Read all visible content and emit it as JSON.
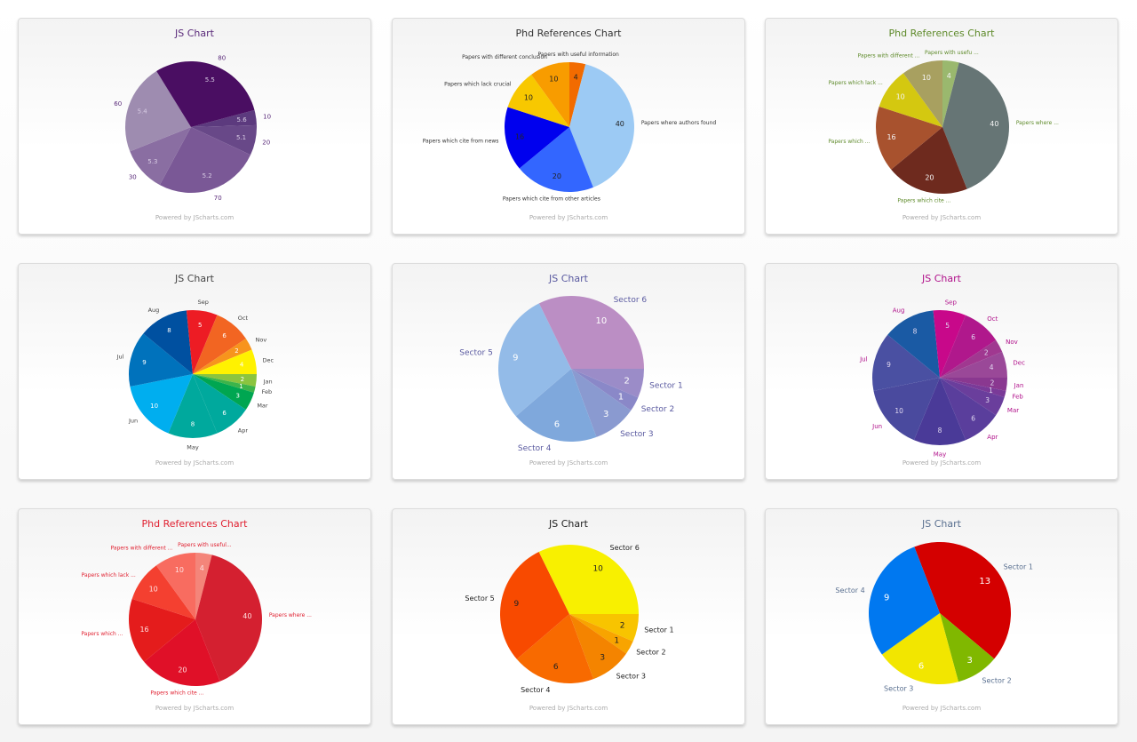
{
  "footer_text": "Powered by JScharts.com",
  "chart_data": [
    {
      "type": "pie",
      "title": "JS Chart",
      "labels": [
        "10",
        "20",
        "70",
        "30",
        "60",
        "80"
      ],
      "values": [
        10,
        20,
        70,
        30,
        60,
        80
      ],
      "inner_labels": [
        "5.6",
        "5.1",
        "5.2",
        "5.3",
        "5.4",
        "5.5"
      ],
      "colors": [
        "#5c3a7e",
        "#684888",
        "#7a5896",
        "#8a6ea2",
        "#9e8cb0",
        "#4a0e62"
      ],
      "text_color": "#5a2a7a",
      "inner_color": "#d8cce4"
    },
    {
      "type": "pie",
      "title": "Phd References Chart",
      "labels": [
        "Papers with useful information",
        "Papers where authors found",
        "Papers which cite from other articles",
        "Papers which cite from news",
        "Papers which lack crucial",
        "Papers with different conclusion"
      ],
      "values": [
        4,
        40,
        20,
        16,
        10,
        10
      ],
      "inner_labels": [
        "4",
        "40",
        "20",
        "16",
        "10",
        "10"
      ],
      "colors": [
        "#f26b00",
        "#9ccaf4",
        "#3366ff",
        "#0000ee",
        "#f8c800",
        "#f89c00"
      ],
      "text_color": "#333333",
      "inner_color": "#222222"
    },
    {
      "type": "pie",
      "title": "Phd References Chart",
      "labels": [
        "Papers with usefu ...",
        "Papers where ...",
        "Papers which cite ...",
        "Papers which ...",
        "Papers which lack ...",
        "Papers with different ..."
      ],
      "values": [
        4,
        40,
        20,
        16,
        10,
        10
      ],
      "inner_labels": [
        "4",
        "40",
        "20",
        "16",
        "10",
        "10"
      ],
      "colors": [
        "#9ab86e",
        "#667575",
        "#6e2a1e",
        "#a8522e",
        "#d4c810",
        "#a8a060"
      ],
      "text_color": "#5e8a2a",
      "inner_color": "#f4f4f4"
    },
    {
      "type": "pie",
      "title": "JS Chart",
      "labels": [
        "Jan",
        "Feb",
        "Mar",
        "Apr",
        "May",
        "Jun",
        "Jul",
        "Aug",
        "Sep",
        "Oct",
        "Nov",
        "Dec"
      ],
      "values": [
        2,
        1,
        3,
        6,
        8,
        10,
        9,
        8,
        5,
        6,
        2,
        4
      ],
      "inner_labels": [
        "2",
        "1",
        "3",
        "6",
        "8",
        "10",
        "9",
        "8",
        "5",
        "6",
        "2",
        "4"
      ],
      "colors": [
        "#8bc43f",
        "#3cb44a",
        "#00a651",
        "#00a99d",
        "#00a99d",
        "#00aeef",
        "#0072bc",
        "#0050a0",
        "#ed1c24",
        "#f26522",
        "#f7941d",
        "#fff200"
      ],
      "text_color": "#444444",
      "inner_color": "#ffffff"
    },
    {
      "type": "pie",
      "title": "JS Chart",
      "labels": [
        "Sector 1",
        "Sector 2",
        "Sector 3",
        "Sector 4",
        "Sector 5",
        "Sector 6"
      ],
      "values": [
        2,
        1,
        3,
        6,
        9,
        10
      ],
      "inner_labels": [
        "2",
        "1",
        "3",
        "6",
        "9",
        "10"
      ],
      "colors": [
        "#9b8cc8",
        "#8a88c8",
        "#8a9ad0",
        "#7fa8dc",
        "#93bbe8",
        "#bb8ec4"
      ],
      "text_color": "#5a5aa0",
      "inner_color": "#ffffff"
    },
    {
      "type": "pie",
      "title": "JS Chart",
      "labels": [
        "Jan",
        "Feb",
        "Mar",
        "Apr",
        "May",
        "Jun",
        "Jul",
        "Aug",
        "Sep",
        "Oct",
        "Nov",
        "Dec"
      ],
      "values": [
        2,
        1,
        3,
        6,
        8,
        10,
        9,
        8,
        5,
        6,
        2,
        4
      ],
      "inner_labels": [
        "2",
        "1",
        "3",
        "6",
        "8",
        "10",
        "9",
        "8",
        "5",
        "6",
        "2",
        "4"
      ],
      "colors": [
        "#8a3890",
        "#7a3a98",
        "#6a3e9c",
        "#5a3e9c",
        "#4a3a98",
        "#4a4a9e",
        "#4a50a2",
        "#1a5aa4",
        "#c8088a",
        "#b0188c",
        "#a03890",
        "#9a4898"
      ],
      "text_color": "#b0108a",
      "inner_color": "#e0d8f0"
    },
    {
      "type": "pie",
      "title": "Phd References Chart",
      "labels": [
        "Papers with useful...",
        "Papers where ...",
        "Papers which cite ...",
        "Papers which ...",
        "Papers which lack ...",
        "Papers with different ..."
      ],
      "values": [
        4,
        40,
        20,
        16,
        10,
        10
      ],
      "inner_labels": [
        "4",
        "40",
        "20",
        "16",
        "10",
        "10"
      ],
      "colors": [
        "#f4857a",
        "#d42030",
        "#e01028",
        "#e41c1c",
        "#f44030",
        "#f86c60"
      ],
      "text_color": "#e02030",
      "inner_color": "#ffe0e0"
    },
    {
      "type": "pie",
      "title": "JS Chart",
      "labels": [
        "Sector 1",
        "Sector 2",
        "Sector 3",
        "Sector 4",
        "Sector 5",
        "Sector 6"
      ],
      "values": [
        2,
        1,
        3,
        6,
        9,
        10
      ],
      "inner_labels": [
        "2",
        "1",
        "3",
        "6",
        "9",
        "10"
      ],
      "colors": [
        "#f8c400",
        "#f8a400",
        "#f48400",
        "#f86a00",
        "#f84a00",
        "#f8f000"
      ],
      "text_color": "#222222",
      "inner_color": "#222222"
    },
    {
      "type": "pie",
      "title": "JS Chart",
      "labels": [
        "Sector 1",
        "Sector 2",
        "Sector 3",
        "Sector 4"
      ],
      "values": [
        13,
        3,
        6,
        9
      ],
      "inner_labels": [
        "13",
        "3",
        "6",
        "9"
      ],
      "colors": [
        "#d40000",
        "#80b800",
        "#f2e600",
        "#0078f0"
      ],
      "text_color": "#5a7090",
      "inner_color": "#ffffff"
    }
  ]
}
